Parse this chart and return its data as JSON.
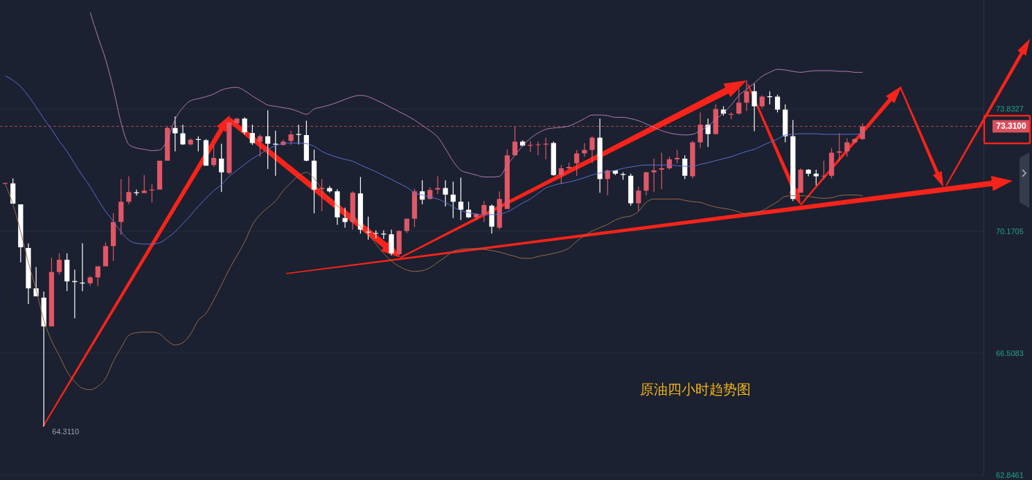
{
  "chart_data": {
    "type": "candlestick",
    "title": "原油四小时趋势图",
    "categories": [
      null,
      null,
      null,
      null,
      null,
      null,
      null,
      null,
      null,
      null,
      null,
      null,
      null,
      null,
      null,
      null,
      null,
      null,
      null,
      null,
      null,
      null,
      null,
      null,
      null,
      null,
      null,
      null,
      null,
      null,
      null,
      null,
      null,
      null,
      null,
      null,
      null,
      null,
      null,
      null,
      null,
      null,
      null,
      null,
      null,
      null,
      null,
      null,
      null,
      null,
      null,
      null,
      null,
      null,
      null,
      null,
      null,
      null,
      null,
      null,
      null,
      null,
      null,
      null,
      null,
      null,
      null,
      null,
      null,
      null,
      null,
      null,
      null,
      null,
      null,
      null,
      null,
      null,
      null,
      null,
      null,
      null,
      null,
      null,
      null,
      null,
      null,
      null,
      null,
      null,
      null,
      null,
      null,
      null,
      null,
      null,
      null,
      null,
      null,
      null,
      null,
      null,
      null,
      null,
      null,
      null,
      null,
      null,
      null,
      null,
      null,
      null,
      null,
      null,
      null,
      null,
      null,
      null,
      null,
      null,
      null,
      null,
      null,
      null,
      null,
      null,
      null
    ],
    "ohlc": [
      [
        71.59,
        71.62,
        71.58,
        71.61
      ],
      [
        71.6,
        71.75,
        70.97,
        70.99
      ],
      [
        70.97,
        70.97,
        69.23,
        69.68
      ],
      [
        69.66,
        69.8,
        67.98,
        68.45
      ],
      [
        68.45,
        69.09,
        68.21,
        68.21
      ],
      [
        68.17,
        68.35,
        64.311,
        67.31
      ],
      [
        67.31,
        69.37,
        67.31,
        68.94
      ],
      [
        68.94,
        69.5,
        68.86,
        69.31
      ],
      [
        69.31,
        69.5,
        68.37,
        68.66
      ],
      [
        68.67,
        69.01,
        67.55,
        68.64
      ],
      [
        68.62,
        69.8,
        68.37,
        68.6
      ],
      [
        68.6,
        68.82,
        68.53,
        68.78
      ],
      [
        68.78,
        69.11,
        68.53,
        69.11
      ],
      [
        69.11,
        69.82,
        69.11,
        69.72
      ],
      [
        69.72,
        70.7,
        69.27,
        70.44
      ],
      [
        70.44,
        71.73,
        70.05,
        71.05
      ],
      [
        71.05,
        71.81,
        70.97,
        71.34
      ],
      [
        71.33,
        71.41,
        71.23,
        71.31
      ],
      [
        71.31,
        71.85,
        71.31,
        71.38
      ],
      [
        71.39,
        71.58,
        71.03,
        71.41
      ],
      [
        71.41,
        72.28,
        71.41,
        72.28
      ],
      [
        72.28,
        73.3,
        72.28,
        73.26
      ],
      [
        73.26,
        73.61,
        72.56,
        73.1
      ],
      [
        73.1,
        73.36,
        72.75,
        72.77
      ],
      [
        72.77,
        72.95,
        72.73,
        72.91
      ],
      [
        72.93,
        73.01,
        72.56,
        72.91
      ],
      [
        72.89,
        72.93,
        72.13,
        72.13
      ],
      [
        72.15,
        72.75,
        72.09,
        72.36
      ],
      [
        72.34,
        72.79,
        71.34,
        71.93
      ],
      [
        71.91,
        73.44,
        71.87,
        73.42
      ],
      [
        73.4,
        73.56,
        73.38,
        73.54
      ],
      [
        73.54,
        73.58,
        73.07,
        73.13
      ],
      [
        73.11,
        73.36,
        72.75,
        72.81
      ],
      [
        72.85,
        73.07,
        72.4,
        73.01
      ],
      [
        73.01,
        73.79,
        72.03,
        72.79
      ],
      [
        72.79,
        73.18,
        71.83,
        72.77
      ],
      [
        72.75,
        72.91,
        72.73,
        72.85
      ],
      [
        72.87,
        73.18,
        72.75,
        73.07
      ],
      [
        73.08,
        73.36,
        72.77,
        73.06
      ],
      [
        73.05,
        73.48,
        72.26,
        72.28
      ],
      [
        72.28,
        72.61,
        70.7,
        71.41
      ],
      [
        71.42,
        71.73,
        70.77,
        71.46
      ],
      [
        71.46,
        71.52,
        71.32,
        71.36
      ],
      [
        71.36,
        71.42,
        70.36,
        70.58
      ],
      [
        70.56,
        70.87,
        70.27,
        70.44
      ],
      [
        70.44,
        71.36,
        70.21,
        71.32
      ],
      [
        71.3,
        71.79,
        70.09,
        70.21
      ],
      [
        70.15,
        70.6,
        69.91,
        70.13
      ],
      [
        70.11,
        70.19,
        69.95,
        70.09
      ],
      [
        70.09,
        70.19,
        69.93,
        70.07
      ],
      [
        70.07,
        70.21,
        69.44,
        69.5
      ],
      [
        69.48,
        70.19,
        69.44,
        70.17
      ],
      [
        70.17,
        70.54,
        70.11,
        70.54
      ],
      [
        70.54,
        71.44,
        70.29,
        71.36
      ],
      [
        71.36,
        71.69,
        70.97,
        71.11
      ],
      [
        71.13,
        71.48,
        71.11,
        71.4
      ],
      [
        71.41,
        71.81,
        71.28,
        71.46
      ],
      [
        71.46,
        71.69,
        70.91,
        71.26
      ],
      [
        71.26,
        71.65,
        70.56,
        71.05
      ],
      [
        71.05,
        71.77,
        70.5,
        70.81
      ],
      [
        70.81,
        71.05,
        70.56,
        70.58
      ],
      [
        70.58,
        70.7,
        70.5,
        70.68
      ],
      [
        70.68,
        71.07,
        70.44,
        70.95
      ],
      [
        70.93,
        70.97,
        70.09,
        70.3
      ],
      [
        70.27,
        71.36,
        70.21,
        71.13
      ],
      [
        70.83,
        72.62,
        70.83,
        72.44
      ],
      [
        72.44,
        73.3,
        72.44,
        72.85
      ],
      [
        72.85,
        72.89,
        72.71,
        72.73
      ],
      [
        72.73,
        72.87,
        72.54,
        72.75
      ],
      [
        72.75,
        72.85,
        72.44,
        72.77
      ],
      [
        72.77,
        72.97,
        72.32,
        72.79
      ],
      [
        72.81,
        72.85,
        71.83,
        71.85
      ],
      [
        71.85,
        72.15,
        71.58,
        72.05
      ],
      [
        72.05,
        72.22,
        72.03,
        72.09
      ],
      [
        72.2,
        72.6,
        71.83,
        72.5
      ],
      [
        72.5,
        72.81,
        72.4,
        72.6
      ],
      [
        72.6,
        73.01,
        72.2,
        72.97
      ],
      [
        72.97,
        73.54,
        71.32,
        71.73
      ],
      [
        71.73,
        72.01,
        71.24,
        71.99
      ],
      [
        71.99,
        71.99,
        71.85,
        71.89
      ],
      [
        71.88,
        71.93,
        71.71,
        71.86
      ],
      [
        71.83,
        71.89,
        70.93,
        71.0
      ],
      [
        71.0,
        71.5,
        70.77,
        71.38
      ],
      [
        71.38,
        71.95,
        71.24,
        71.93
      ],
      [
        71.93,
        72.34,
        71.34,
        71.99
      ],
      [
        72.01,
        72.52,
        71.42,
        72.05
      ],
      [
        72.05,
        72.4,
        72.01,
        72.32
      ],
      [
        72.32,
        72.6,
        72.2,
        72.36
      ],
      [
        72.34,
        72.44,
        71.73,
        71.83
      ],
      [
        71.81,
        72.87,
        71.75,
        72.83
      ],
      [
        72.83,
        73.73,
        72.66,
        73.36
      ],
      [
        73.36,
        73.54,
        72.69,
        73.08
      ],
      [
        73.08,
        73.97,
        73.06,
        73.83
      ],
      [
        73.81,
        73.91,
        73.63,
        73.69
      ],
      [
        73.66,
        73.73,
        73.52,
        73.68
      ],
      [
        73.69,
        74.44,
        73.66,
        74.02
      ],
      [
        74.02,
        74.69,
        73.77,
        74.36
      ],
      [
        74.36,
        74.59,
        73.16,
        73.91
      ],
      [
        73.91,
        74.24,
        73.85,
        74.2
      ],
      [
        74.21,
        74.36,
        73.97,
        74.19
      ],
      [
        74.2,
        74.26,
        73.73,
        73.81
      ],
      [
        73.81,
        73.97,
        72.83,
        73.01
      ],
      [
        73.01,
        73.5,
        71.07,
        71.13
      ],
      [
        71.32,
        72.05,
        71.32,
        72.01
      ],
      [
        72.01,
        72.03,
        71.81,
        71.89
      ],
      [
        71.89,
        72.01,
        71.54,
        71.81
      ],
      [
        71.81,
        72.28,
        71.73,
        71.83
      ],
      [
        71.83,
        72.66,
        71.75,
        72.52
      ],
      [
        72.52,
        73.1,
        72.28,
        72.56
      ],
      [
        72.56,
        72.95,
        72.4,
        72.83
      ],
      [
        72.83,
        72.95,
        72.79,
        72.93
      ],
      [
        72.93,
        73.4,
        72.91,
        73.31
      ],
      null,
      null,
      null,
      null,
      null,
      null,
      null,
      null,
      null,
      null,
      null,
      null,
      null,
      null,
      null
    ],
    "colors": [
      "#e05766",
      "#ffffff",
      "#ffffff",
      "#ffffff",
      "#ffffff",
      "#ffffff",
      "#e05766",
      "#e05766",
      "#ffffff",
      "#ffffff",
      "#ffffff",
      "#e05766",
      "#e05766",
      "#e05766",
      "#e05766",
      "#e05766",
      "#e05766",
      "#ffffff",
      "#e05766",
      "#e05766",
      "#e05766",
      "#e05766",
      "#ffffff",
      "#ffffff",
      "#e05766",
      "#ffffff",
      "#ffffff",
      "#e05766",
      "#ffffff",
      "#e05766",
      "#e05766",
      "#ffffff",
      "#ffffff",
      "#e05766",
      "#ffffff",
      "#ffffff",
      "#e05766",
      "#e05766",
      "#ffffff",
      "#ffffff",
      "#ffffff",
      "#e05766",
      "#ffffff",
      "#ffffff",
      "#ffffff",
      "#e05766",
      "#ffffff",
      "#ffffff",
      "#ffffff",
      "#ffffff",
      "#ffffff",
      "#e05766",
      "#e05766",
      "#e05766",
      "#ffffff",
      "#e05766",
      "#e05766",
      "#ffffff",
      "#ffffff",
      "#ffffff",
      "#ffffff",
      "#e05766",
      "#e05766",
      "#ffffff",
      "#e05766",
      "#e05766",
      "#e05766",
      "#ffffff",
      "#e05766",
      "#e05766",
      "#e05766",
      "#ffffff",
      "#e05766",
      "#e05766",
      "#e05766",
      "#e05766",
      "#e05766",
      "#ffffff",
      "#e05766",
      "#ffffff",
      "#ffffff",
      "#ffffff",
      "#e05766",
      "#e05766",
      "#e05766",
      "#e05766",
      "#e05766",
      "#e05766",
      "#ffffff",
      "#e05766",
      "#e05766",
      "#ffffff",
      "#e05766",
      "#ffffff",
      "#e05766",
      "#e05766",
      "#e05766",
      "#ffffff",
      "#e05766",
      "#ffffff",
      "#ffffff",
      "#ffffff",
      "#ffffff",
      "#e05766",
      "#ffffff",
      "#ffffff",
      "#e05766",
      "#e05766",
      "#e05766",
      "#e05766",
      "#e05766",
      "#e05766",
      null,
      null,
      null,
      null,
      null,
      null,
      null,
      null,
      null,
      null,
      null,
      null,
      null,
      null,
      null
    ],
    "series": [
      {
        "type": "line",
        "color": "#b77bb3",
        "values": [
          null,
          null,
          null,
          null,
          null,
          null,
          null,
          null,
          null,
          null,
          null,
          76.73,
          76.0,
          75.32,
          74.44,
          73.42,
          72.77,
          72.66,
          72.62,
          72.58,
          72.6,
          72.91,
          73.52,
          73.87,
          74.08,
          74.14,
          74.2,
          74.28,
          74.4,
          74.46,
          74.48,
          74.38,
          74.22,
          74.08,
          73.95,
          73.91,
          73.87,
          73.83,
          73.75,
          73.67,
          73.83,
          73.89,
          73.95,
          74.03,
          74.12,
          74.2,
          74.24,
          74.2,
          74.1,
          73.99,
          73.87,
          73.75,
          73.63,
          73.5,
          73.34,
          73.18,
          72.99,
          72.64,
          72.26,
          71.99,
          71.91,
          71.85,
          71.79,
          71.79,
          71.81,
          72.15,
          72.44,
          72.73,
          72.95,
          73.11,
          73.22,
          73.26,
          73.28,
          73.32,
          73.42,
          73.54,
          73.65,
          73.65,
          73.63,
          73.58,
          73.58,
          73.54,
          73.48,
          73.38,
          73.28,
          73.18,
          73.11,
          73.07,
          73.05,
          73.07,
          73.18,
          73.32,
          73.52,
          73.71,
          73.95,
          74.24,
          74.42,
          74.61,
          74.81,
          74.93,
          75.02,
          75.0,
          74.96,
          74.93,
          74.96,
          74.98,
          74.98,
          74.98,
          74.96,
          74.96,
          74.93,
          74.93,
          null,
          null,
          null,
          null,
          null,
          null,
          null,
          null,
          null,
          null,
          null,
          null,
          null,
          null,
          null
        ]
      },
      {
        "type": "line",
        "color": "#5a70d6",
        "values": [
          74.83,
          74.69,
          74.5,
          74.22,
          73.89,
          73.54,
          73.22,
          72.87,
          72.56,
          72.19,
          71.83,
          71.5,
          71.11,
          70.76,
          70.46,
          70.15,
          69.9,
          69.8,
          69.78,
          69.78,
          69.82,
          69.96,
          70.15,
          70.39,
          70.64,
          70.91,
          71.15,
          71.38,
          71.56,
          71.81,
          71.99,
          72.17,
          72.34,
          72.48,
          72.62,
          72.73,
          72.79,
          72.81,
          72.81,
          72.79,
          72.71,
          72.56,
          72.46,
          72.38,
          72.32,
          72.26,
          72.15,
          72.05,
          71.95,
          71.83,
          71.72,
          71.6,
          71.48,
          71.32,
          71.25,
          71.19,
          71.13,
          71.03,
          70.89,
          70.78,
          70.72,
          70.68,
          70.66,
          70.66,
          70.68,
          70.74,
          70.87,
          71.01,
          71.13,
          71.3,
          71.46,
          71.54,
          71.6,
          71.64,
          71.7,
          71.77,
          71.85,
          71.91,
          71.95,
          71.99,
          72.05,
          72.09,
          72.13,
          72.15,
          72.15,
          72.15,
          72.15,
          72.13,
          72.11,
          72.11,
          72.17,
          72.22,
          72.28,
          72.34,
          72.4,
          72.48,
          72.56,
          72.62,
          72.73,
          72.83,
          72.93,
          73.05,
          73.07,
          73.09,
          73.09,
          73.09,
          73.07,
          73.07,
          73.07,
          73.07,
          73.07,
          73.09,
          null,
          null,
          null,
          null,
          null,
          null,
          null,
          null,
          null,
          null,
          null,
          null,
          null,
          null,
          null
        ]
      },
      {
        "type": "line",
        "color": "#9a6a4c",
        "values": [
          71.58,
          70.97,
          70.15,
          69.23,
          68.41,
          67.49,
          66.88,
          66.43,
          65.96,
          65.65,
          65.45,
          65.41,
          65.51,
          65.75,
          66.26,
          66.67,
          67.04,
          67.12,
          67.14,
          67.14,
          67.08,
          66.88,
          66.75,
          66.82,
          67.08,
          67.49,
          67.7,
          68.1,
          68.55,
          69.02,
          69.43,
          69.84,
          70.35,
          70.66,
          70.87,
          71.07,
          71.38,
          71.62,
          71.83,
          71.93,
          71.75,
          71.42,
          71.11,
          70.93,
          70.7,
          70.52,
          70.31,
          70.07,
          69.78,
          69.5,
          69.27,
          69.11,
          69.0,
          68.96,
          68.98,
          69.07,
          69.23,
          69.39,
          69.56,
          69.62,
          69.64,
          69.64,
          69.62,
          69.58,
          69.54,
          69.47,
          69.41,
          69.35,
          69.35,
          69.41,
          69.45,
          69.5,
          69.56,
          69.66,
          69.86,
          70.03,
          70.17,
          70.27,
          70.37,
          70.5,
          70.58,
          70.62,
          70.76,
          71.03,
          71.13,
          71.13,
          71.13,
          71.13,
          71.09,
          71.05,
          71.03,
          70.95,
          70.89,
          70.85,
          70.81,
          70.74,
          70.68,
          70.72,
          70.78,
          70.91,
          71.05,
          71.21,
          71.23,
          71.23,
          71.21,
          71.17,
          71.15,
          71.17,
          71.23,
          71.25,
          71.25,
          71.23,
          null,
          null,
          null,
          null,
          null,
          null,
          null,
          null,
          null,
          null,
          null,
          null,
          null,
          null,
          null
        ]
      }
    ],
    "ylim": [
      62.8461,
      77.1
    ],
    "yticks": [
      62.8461,
      66.5083,
      70.1705,
      73.8327
    ],
    "grid": "y",
    "ref_lines": [
      {
        "axis": "y",
        "value": 73.31,
        "label": "73.3100",
        "color": "#d9505e",
        "line_style": "dashed"
      }
    ],
    "annotations": [
      "64.3110"
    ]
  }
}
